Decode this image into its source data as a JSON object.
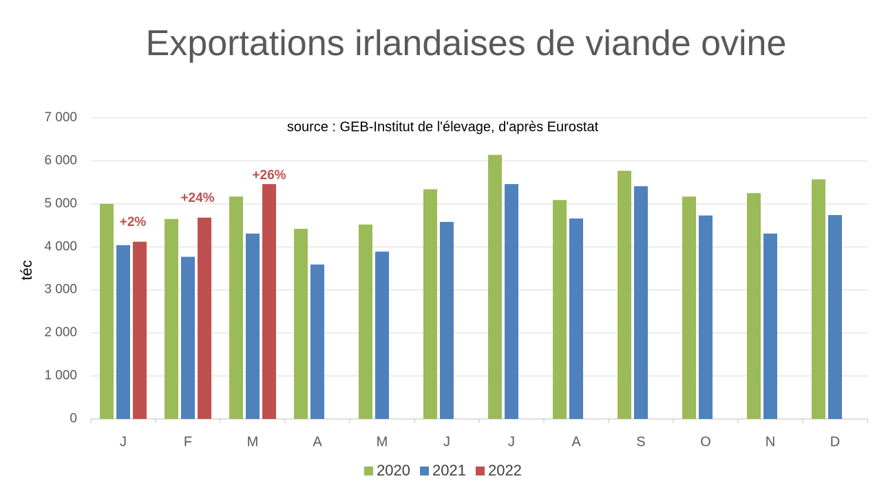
{
  "chart_data": {
    "type": "bar",
    "title": "Exportations irlandaises de viande ovine",
    "subtitle": "source : GEB-Institut de l'élevage, d'après Eurostat",
    "y_label": "téc",
    "categories": [
      "J",
      "F",
      "M",
      "A",
      "M",
      "J",
      "J",
      "A",
      "S",
      "O",
      "N",
      "D"
    ],
    "series": [
      {
        "name": "2020",
        "color": "#9bbb59",
        "values": [
          5000,
          4650,
          5170,
          4420,
          4520,
          5340,
          6140,
          5090,
          5770,
          5170,
          5250,
          5570
        ]
      },
      {
        "name": "2021",
        "color": "#4f81bd",
        "values": [
          4040,
          3770,
          4310,
          3590,
          3890,
          4580,
          5460,
          4660,
          5410,
          4730,
          4310,
          4740
        ]
      },
      {
        "name": "2022",
        "color": "#c0504d",
        "values": [
          4120,
          4680,
          5460,
          null,
          null,
          null,
          null,
          null,
          null,
          null,
          null,
          null
        ]
      }
    ],
    "annotations": [
      "+2%",
      "+24%",
      "+26%"
    ],
    "ylim": [
      0,
      7000
    ],
    "yticks": [
      0,
      {
        "value": 1000,
        "label": "1 000"
      },
      {
        "value": 2000,
        "label": "2 000"
      },
      {
        "value": 3000,
        "label": "3 000"
      },
      {
        "value": 4000,
        "label": "4 000"
      },
      {
        "value": 5000,
        "label": "5 000"
      },
      {
        "value": 6000,
        "label": "6 000"
      },
      {
        "value": 7000,
        "label": "7 000"
      }
    ],
    "grid": true,
    "legend": "bottom"
  }
}
